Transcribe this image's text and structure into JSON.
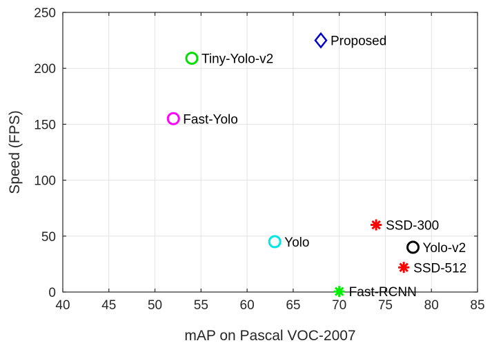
{
  "chart_data": {
    "type": "scatter",
    "title": "",
    "xlabel": "mAP on Pascal VOC-2007",
    "ylabel": "Speed (FPS)",
    "xlim": [
      40,
      85
    ],
    "ylim": [
      0,
      250
    ],
    "x_ticks": [
      "40",
      "45",
      "50",
      "55",
      "60",
      "65",
      "70",
      "75",
      "80",
      "85"
    ],
    "y_ticks": [
      "0",
      "50",
      "100",
      "150",
      "200",
      "250"
    ],
    "grid": true,
    "points": [
      {
        "label": "Proposed",
        "x": 68,
        "y": 225,
        "marker": "diamond",
        "color": "#0000cc"
      },
      {
        "label": "Tiny-Yolo-v2",
        "x": 54,
        "y": 209,
        "marker": "circle",
        "color": "#00dd00"
      },
      {
        "label": "Fast-Yolo",
        "x": 52,
        "y": 155,
        "marker": "circle",
        "color": "#ff00ff"
      },
      {
        "label": "Yolo",
        "x": 63,
        "y": 45,
        "marker": "circle",
        "color": "#00e5e5"
      },
      {
        "label": "SSD-300",
        "x": 74,
        "y": 60,
        "marker": "asterisk",
        "color": "#ff0000"
      },
      {
        "label": "Yolo-v2",
        "x": 78,
        "y": 40,
        "marker": "circle",
        "color": "#000000"
      },
      {
        "label": "SSD-512",
        "x": 77,
        "y": 22,
        "marker": "asterisk",
        "color": "#ff0000"
      },
      {
        "label": "Fast-RCNN",
        "x": 70,
        "y": 0.5,
        "marker": "asterisk",
        "color": "#00ee00"
      }
    ]
  }
}
